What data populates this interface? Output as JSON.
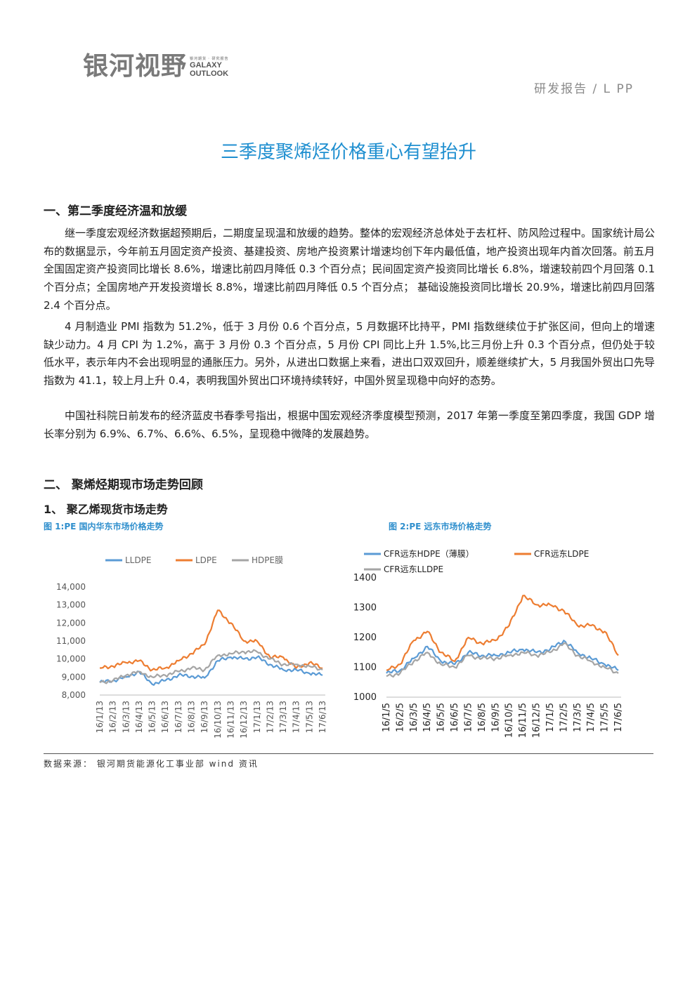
{
  "header": {
    "logo_cn": "银河视野",
    "logo_en_line1": "GALAXY",
    "logo_en_line2": "OUTLOOK",
    "logo_tiny": "银河期货 · 研究报告",
    "report_tag": "研发报告 / L PP"
  },
  "title": "三季度聚烯烃价格重心有望抬升",
  "section1": {
    "heading": "一、第二季度经济温和放缓",
    "paragraphs": [
      "继一季度宏观经济数据超预期后，二期度呈现温和放缓的趋势。整体的宏观经济总体处于去杠杆、防风险过程中。国家统计局公布的数据显示，今年前五月固定资产投资、基建投资、房地产投资累计增速均创下年内最低值，地产投资出现年内首次回落。前五月全国固定资产投资同比增长 8.6%，增速比前四月降低 0.3 个百分点；民间固定资产投资同比增长 6.8%，增速较前四个月回落 0.1 个百分点；全国房地产开发投资增长 8.8%，增速比前四月降低 0.5 个百分点； 基础设施投资同比增长 20.9%，增速比前四月回落 2.4 个百分点。",
      "4 月制造业 PMI 指数为 51.2%，低于 3 月份 0.6 个百分点，5 月数据环比持平，PMI 指数继续位于扩张区间，但向上的增速缺少动力。4 月 CPI 为 1.2%，高于 3 月份 0.3 个百分点，5 月份 CPI 同比上升 1.5%,比三月份上升 0.3 个百分点，但仍处于较低水平，表示年内不会出现明显的通胀压力。另外，从进出口数据上来看，进出口双双回升，顺差继续扩大，5 月我国外贸出口先导指数为 41.1，较上月上升 0.4，表明我国外贸出口环境持续转好，中国外贸呈现稳中向好的态势。",
      "中国社科院日前发布的经济蓝皮书春季号指出，根据中国宏观经济季度模型预测，2017 年第一季度至第四季度，我国 GDP 增长率分别为 6.9%、6.7%、6.6%、6.5%，呈现稳中微降的发展趋势。"
    ]
  },
  "section2": {
    "heading": "二、  聚烯烃期现市场走势回顾",
    "sub_heading": "1、 聚乙烯现货市场走势"
  },
  "colors": {
    "blue": "#5b9bd5",
    "orange": "#ed7d31",
    "gray": "#a5a5a5",
    "title_blue": "#1f8fd0"
  },
  "chart_data": [
    {
      "type": "line",
      "title": "图 1:PE 国内华东市场价格走势",
      "categories": [
        "16/1/13",
        "16/2/13",
        "16/3/13",
        "16/4/13",
        "16/5/13",
        "16/6/13",
        "16/7/13",
        "16/8/13",
        "16/9/13",
        "16/10/13",
        "16/11/13",
        "16/12/13",
        "17/1/13",
        "17/2/13",
        "17/3/13",
        "17/4/13",
        "17/5/13",
        "17/6/13"
      ],
      "ylim": [
        8000,
        14000
      ],
      "yticks": [
        "14,000",
        "13,000",
        "12,000",
        "11,000",
        "10,000",
        "9,000",
        "8,000"
      ],
      "legend_position": "top",
      "series": [
        {
          "name": "LLDPE",
          "values": [
            8700,
            8800,
            9000,
            9300,
            8600,
            8800,
            9100,
            9050,
            8950,
            9900,
            10100,
            10000,
            10100,
            9700,
            9400,
            9400,
            9200,
            9100
          ]
        },
        {
          "name": "LDPE",
          "values": [
            9500,
            9600,
            9800,
            9900,
            9400,
            9500,
            9900,
            10300,
            10800,
            12700,
            12000,
            11000,
            11000,
            10100,
            10100,
            9500,
            9800,
            9500
          ]
        },
        {
          "name": "HDPE膜",
          "values": [
            8700,
            8800,
            9100,
            9300,
            9000,
            9100,
            9300,
            9500,
            9400,
            10200,
            10300,
            10400,
            10400,
            10000,
            9700,
            9700,
            9600,
            9400
          ]
        }
      ]
    },
    {
      "type": "line",
      "title": "图 2:PE 远东市场价格走势",
      "categories": [
        "16/1/5",
        "16/2/5",
        "16/3/5",
        "16/4/5",
        "16/5/5",
        "16/6/5",
        "16/7/5",
        "16/8/5",
        "16/9/5",
        "16/10/5",
        "16/11/5",
        "16/12/5",
        "17/1/5",
        "17/2/5",
        "17/3/5",
        "17/4/5",
        "17/5/5",
        "17/6/5"
      ],
      "ylim": [
        1000,
        1400
      ],
      "yticks": [
        "1400",
        "1300",
        "1200",
        "1100",
        "1000"
      ],
      "legend_position": "top",
      "series": [
        {
          "name": "CFR远东HDPE（薄膜）",
          "values": [
            1080,
            1090,
            1130,
            1170,
            1120,
            1110,
            1150,
            1140,
            1140,
            1150,
            1160,
            1150,
            1160,
            1190,
            1150,
            1130,
            1110,
            1090
          ]
        },
        {
          "name": "CFR远东LDPE",
          "values": [
            1090,
            1110,
            1190,
            1220,
            1150,
            1120,
            1200,
            1180,
            1190,
            1240,
            1340,
            1310,
            1310,
            1290,
            1240,
            1240,
            1220,
            1140
          ]
        },
        {
          "name": "CFR远东LLDPE",
          "values": [
            1070,
            1080,
            1120,
            1150,
            1110,
            1100,
            1140,
            1130,
            1130,
            1140,
            1150,
            1140,
            1150,
            1180,
            1140,
            1120,
            1100,
            1080
          ]
        }
      ]
    }
  ],
  "source_text": "数据来源： 银河期货能源化工事业部 wind 资讯"
}
